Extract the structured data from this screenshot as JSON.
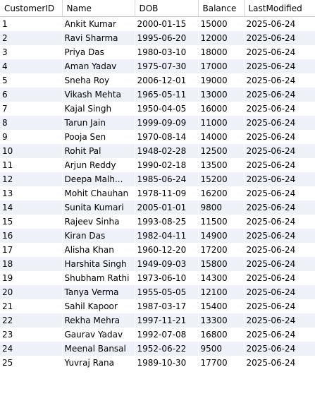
{
  "columns": [
    "CustomerID",
    "Name",
    "DOB",
    "Balance",
    "LastModified"
  ],
  "rows": [
    [
      "1",
      "Ankit Kumar",
      "2000-01-15",
      "15000",
      "2025-06-24"
    ],
    [
      "2",
      "Ravi Sharma",
      "1995-06-20",
      "12000",
      "2025-06-24"
    ],
    [
      "3",
      "Priya Das",
      "1980-03-10",
      "18000",
      "2025-06-24"
    ],
    [
      "4",
      "Aman Yadav",
      "1975-07-30",
      "17000",
      "2025-06-24"
    ],
    [
      "5",
      "Sneha Roy",
      "2006-12-01",
      "19000",
      "2025-06-24"
    ],
    [
      "6",
      "Vikash Mehta",
      "1965-05-11",
      "13000",
      "2025-06-24"
    ],
    [
      "7",
      "Kajal Singh",
      "1950-04-05",
      "16000",
      "2025-06-24"
    ],
    [
      "8",
      "Tarun Jain",
      "1999-09-09",
      "11000",
      "2025-06-24"
    ],
    [
      "9",
      "Pooja Sen",
      "1970-08-14",
      "14000",
      "2025-06-24"
    ],
    [
      "10",
      "Rohit Pal",
      "1948-02-28",
      "12500",
      "2025-06-24"
    ],
    [
      "11",
      "Arjun Reddy",
      "1990-02-18",
      "13500",
      "2025-06-24"
    ],
    [
      "12",
      "Deepa Malh...",
      "1985-06-24",
      "15200",
      "2025-06-24"
    ],
    [
      "13",
      "Mohit Chauhan",
      "1978-11-09",
      "16200",
      "2025-06-24"
    ],
    [
      "14",
      "Sunita Kumari",
      "2005-01-01",
      "9800",
      "2025-06-24"
    ],
    [
      "15",
      "Rajeev Sinha",
      "1993-08-25",
      "11500",
      "2025-06-24"
    ],
    [
      "16",
      "Kiran Das",
      "1982-04-11",
      "14900",
      "2025-06-24"
    ],
    [
      "17",
      "Alisha Khan",
      "1960-12-20",
      "17200",
      "2025-06-24"
    ],
    [
      "18",
      "Harshita Singh",
      "1949-09-03",
      "15800",
      "2025-06-24"
    ],
    [
      "19",
      "Shubham Rathi",
      "1973-06-10",
      "14300",
      "2025-06-24"
    ],
    [
      "20",
      "Tanya Verma",
      "1955-05-05",
      "12100",
      "2025-06-24"
    ],
    [
      "21",
      "Sahil Kapoor",
      "1987-03-17",
      "15400",
      "2025-06-24"
    ],
    [
      "22",
      "Rekha Mehra",
      "1997-11-21",
      "13300",
      "2025-06-24"
    ],
    [
      "23",
      "Gaurav Yadav",
      "1992-07-08",
      "16800",
      "2025-06-24"
    ],
    [
      "24",
      "Meenal Bansal",
      "1952-06-22",
      "9500",
      "2025-06-24"
    ],
    [
      "25",
      "Yuvraj Rana",
      "1989-10-30",
      "17700",
      "2025-06-24"
    ]
  ]
}
